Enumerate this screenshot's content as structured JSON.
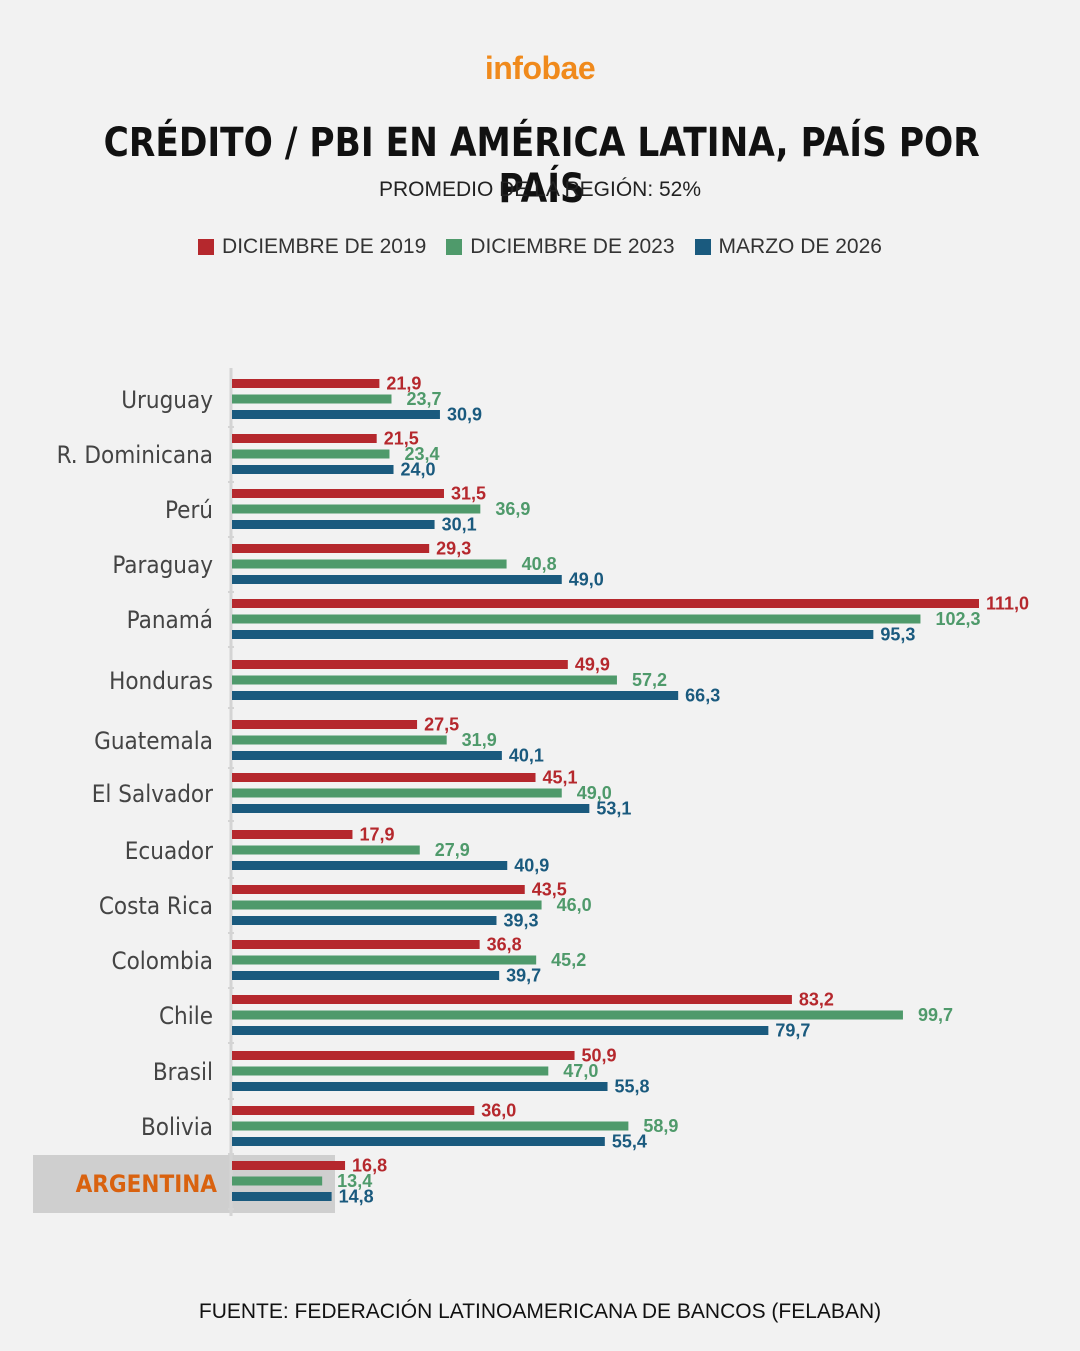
{
  "header": {
    "logo": "infobae",
    "title": "CRÉDITO / PBI EN AMÉRICA LATINA, PAÍS POR PAÍS",
    "subtitle": "PROMEDIO DE LA REGIÓN: 52%"
  },
  "footer": {
    "source": "FUENTE: FEDERACIÓN LATINOAMERICANA DE BANCOS (FELABAN)"
  },
  "colors": {
    "brand": "#f08a1c",
    "highlight_label": "#d9620f",
    "highlight_box": "#cfcfcf"
  },
  "chart_data": {
    "type": "bar",
    "orientation": "horizontal",
    "title": "CRÉDITO / PBI EN AMÉRICA LATINA, PAÍS POR PAÍS",
    "subtitle": "PROMEDIO DE LA REGIÓN: 52%",
    "legend_position": "top",
    "grid": false,
    "xlim": [
      0,
      111
    ],
    "highlight_category": "ARGENTINA",
    "categories": [
      "Uruguay",
      "R. Dominicana",
      "Perú",
      "Paraguay",
      "Panamá",
      "Honduras",
      "Guatemala",
      "El Salvador",
      "Ecuador",
      "Costa Rica",
      "Colombia",
      "Chile",
      "Brasil",
      "Bolivia",
      "ARGENTINA"
    ],
    "series": [
      {
        "name": "DICIEMBRE DE 2019",
        "color": "#b5282d",
        "values": [
          21.9,
          21.5,
          31.5,
          29.3,
          111.0,
          49.9,
          27.5,
          45.1,
          17.9,
          43.5,
          36.8,
          83.2,
          50.9,
          36.0,
          16.8
        ],
        "labels": [
          "21,9",
          "21,5",
          "31,5",
          "29,3",
          "111,0",
          "49,9",
          "27,5",
          "45,1",
          "17,9",
          "43,5",
          "36,8",
          "83,2",
          "50,9",
          "36,0",
          "16,8"
        ]
      },
      {
        "name": "DICIEMBRE DE 2023",
        "color": "#4f9a6b",
        "values": [
          23.7,
          23.4,
          36.9,
          40.8,
          102.3,
          57.2,
          31.9,
          49.0,
          27.9,
          46.0,
          45.2,
          99.7,
          47.0,
          58.9,
          13.4
        ],
        "labels": [
          "23,7",
          "23,4",
          "36,9",
          "40,8",
          "102,3",
          "57,2",
          "31,9",
          "49,0",
          "27,9",
          "46,0",
          "45,2",
          "99,7",
          "47,0",
          "58,9",
          "13,4"
        ]
      },
      {
        "name": "MARZO DE 2026",
        "color": "#1a5a7e",
        "values": [
          30.9,
          24.0,
          30.1,
          49.0,
          95.3,
          66.3,
          40.1,
          53.1,
          40.9,
          39.3,
          39.7,
          79.7,
          55.8,
          55.4,
          14.8
        ],
        "labels": [
          "30,9",
          "24,0",
          "30,1",
          "49,0",
          "95,3",
          "66,3",
          "40,1",
          "53,1",
          "40,9",
          "39,3",
          "39,7",
          "79,7",
          "55,8",
          "55,4",
          "14,8"
        ]
      }
    ]
  }
}
